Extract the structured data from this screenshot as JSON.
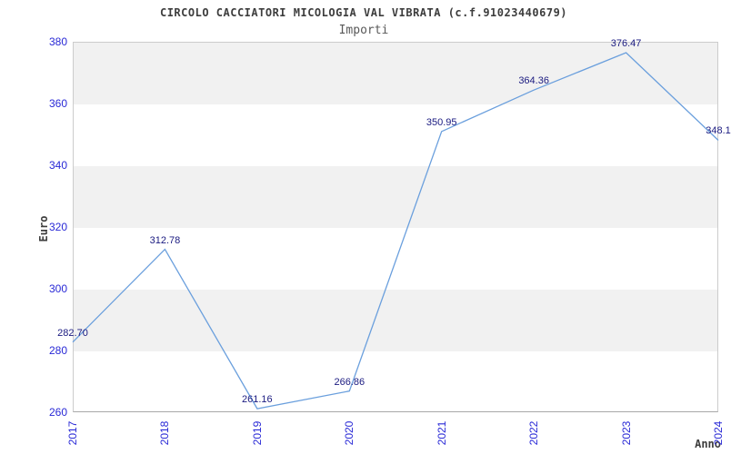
{
  "header": {
    "title": "CIRCOLO CACCIATORI MICOLOGIA VAL VIBRATA (c.f.91023440679)",
    "subtitle": "Importi"
  },
  "chart_data": {
    "type": "line",
    "title": "CIRCOLO CACCIATORI MICOLOGIA VAL VIBRATA (c.f.91023440679)",
    "subtitle": "Importi",
    "x": [
      "2017",
      "2018",
      "2019",
      "2020",
      "2021",
      "2022",
      "2023",
      "2024"
    ],
    "values": [
      282.7,
      312.78,
      261.16,
      266.86,
      350.95,
      364.36,
      376.47,
      348.1
    ],
    "point_labels": [
      "282.70",
      "312.78",
      "261.16",
      "266.86",
      "350.95",
      "364.36",
      "376.47",
      "348.1"
    ],
    "xlabel": "Anno",
    "ylabel": "Euro",
    "ylim": [
      260,
      380
    ],
    "ytick_step": 20,
    "yticks": [
      380,
      360,
      340,
      320,
      300,
      280,
      260
    ],
    "grid": "horizontal alternating bands every 20 units, gray from 380-360 downward",
    "legend": "none",
    "markers": "none"
  },
  "colors": {
    "line": "#6a9fdd",
    "value_label": "#1a1a80",
    "tick_label": "#2929d6",
    "title": "#3d3d3d",
    "subtitle": "#595959",
    "axis_title": "#3d3d3d",
    "band_gray": "#f1f1f1",
    "plot_border": "#cccccc",
    "axis_line": "#a8a8a8",
    "background": "#ffffff"
  }
}
